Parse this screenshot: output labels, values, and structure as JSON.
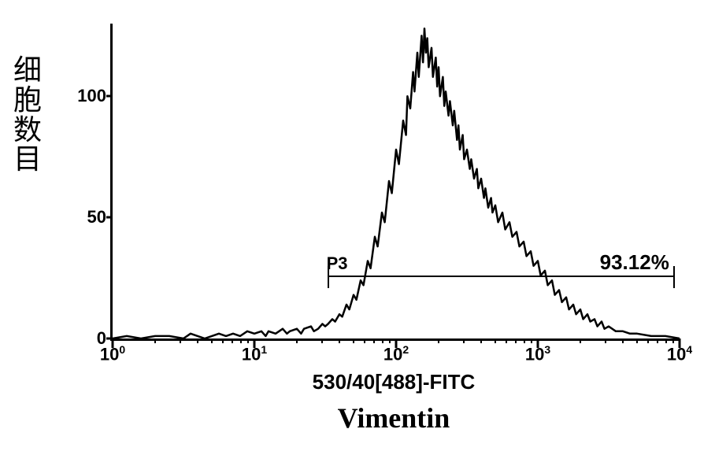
{
  "chart": {
    "type": "flow-cytometry-histogram",
    "background_color": "#ffffff",
    "line_color": "#000000",
    "line_width": 2,
    "ylabel_chars": [
      "细",
      "胞",
      "数",
      "目"
    ],
    "ylabel_fontsize": 36,
    "xlabel": "530/40[488]-FITC",
    "xlabel_fontsize": 26,
    "title_below": "Vimentin",
    "title_fontsize": 36,
    "yticks": [
      {
        "value": 0,
        "label": "0"
      },
      {
        "value": 50,
        "label": "50"
      },
      {
        "value": 100,
        "label": "100"
      }
    ],
    "ylim": [
      0,
      130
    ],
    "xlim_log10": [
      0,
      4
    ],
    "xticks": [
      {
        "log10": 0,
        "base": "10",
        "exp": "0"
      },
      {
        "log10": 1,
        "base": "10",
        "exp": "1"
      },
      {
        "log10": 2,
        "base": "10",
        "exp": "2"
      },
      {
        "log10": 3,
        "base": "10",
        "exp": "3"
      },
      {
        "log10": 4,
        "base": "10",
        "exp": "4"
      }
    ],
    "gate": {
      "label": "P3",
      "percent": "93.12%",
      "start_log10": 1.52,
      "end_log10": 3.96,
      "y_value": 26
    },
    "data_points": [
      {
        "x": 0.0,
        "y": 0
      },
      {
        "x": 0.1,
        "y": 1
      },
      {
        "x": 0.2,
        "y": 0
      },
      {
        "x": 0.3,
        "y": 1
      },
      {
        "x": 0.4,
        "y": 1
      },
      {
        "x": 0.5,
        "y": 0
      },
      {
        "x": 0.55,
        "y": 2
      },
      {
        "x": 0.6,
        "y": 1
      },
      {
        "x": 0.65,
        "y": 0
      },
      {
        "x": 0.7,
        "y": 1
      },
      {
        "x": 0.75,
        "y": 2
      },
      {
        "x": 0.8,
        "y": 1
      },
      {
        "x": 0.85,
        "y": 2
      },
      {
        "x": 0.9,
        "y": 1
      },
      {
        "x": 0.95,
        "y": 3
      },
      {
        "x": 1.0,
        "y": 2
      },
      {
        "x": 1.05,
        "y": 3
      },
      {
        "x": 1.08,
        "y": 1
      },
      {
        "x": 1.1,
        "y": 3
      },
      {
        "x": 1.15,
        "y": 2
      },
      {
        "x": 1.2,
        "y": 4
      },
      {
        "x": 1.23,
        "y": 2
      },
      {
        "x": 1.25,
        "y": 3
      },
      {
        "x": 1.3,
        "y": 4
      },
      {
        "x": 1.33,
        "y": 2
      },
      {
        "x": 1.35,
        "y": 4
      },
      {
        "x": 1.4,
        "y": 5
      },
      {
        "x": 1.42,
        "y": 3
      },
      {
        "x": 1.45,
        "y": 4
      },
      {
        "x": 1.48,
        "y": 6
      },
      {
        "x": 1.5,
        "y": 5
      },
      {
        "x": 1.52,
        "y": 6
      },
      {
        "x": 1.55,
        "y": 8
      },
      {
        "x": 1.57,
        "y": 7
      },
      {
        "x": 1.6,
        "y": 10
      },
      {
        "x": 1.62,
        "y": 9
      },
      {
        "x": 1.65,
        "y": 14
      },
      {
        "x": 1.67,
        "y": 12
      },
      {
        "x": 1.7,
        "y": 18
      },
      {
        "x": 1.72,
        "y": 16
      },
      {
        "x": 1.75,
        "y": 24
      },
      {
        "x": 1.77,
        "y": 22
      },
      {
        "x": 1.8,
        "y": 32
      },
      {
        "x": 1.82,
        "y": 29
      },
      {
        "x": 1.85,
        "y": 42
      },
      {
        "x": 1.87,
        "y": 38
      },
      {
        "x": 1.9,
        "y": 52
      },
      {
        "x": 1.92,
        "y": 48
      },
      {
        "x": 1.95,
        "y": 65
      },
      {
        "x": 1.97,
        "y": 60
      },
      {
        "x": 2.0,
        "y": 78
      },
      {
        "x": 2.02,
        "y": 72
      },
      {
        "x": 2.05,
        "y": 90
      },
      {
        "x": 2.07,
        "y": 84
      },
      {
        "x": 2.08,
        "y": 100
      },
      {
        "x": 2.1,
        "y": 95
      },
      {
        "x": 2.12,
        "y": 110
      },
      {
        "x": 2.13,
        "y": 102
      },
      {
        "x": 2.15,
        "y": 118
      },
      {
        "x": 2.16,
        "y": 108
      },
      {
        "x": 2.18,
        "y": 125
      },
      {
        "x": 2.19,
        "y": 114
      },
      {
        "x": 2.2,
        "y": 128
      },
      {
        "x": 2.21,
        "y": 118
      },
      {
        "x": 2.22,
        "y": 124
      },
      {
        "x": 2.23,
        "y": 112
      },
      {
        "x": 2.25,
        "y": 120
      },
      {
        "x": 2.26,
        "y": 108
      },
      {
        "x": 2.28,
        "y": 116
      },
      {
        "x": 2.29,
        "y": 104
      },
      {
        "x": 2.3,
        "y": 112
      },
      {
        "x": 2.31,
        "y": 100
      },
      {
        "x": 2.33,
        "y": 108
      },
      {
        "x": 2.34,
        "y": 96
      },
      {
        "x": 2.35,
        "y": 102
      },
      {
        "x": 2.37,
        "y": 92
      },
      {
        "x": 2.38,
        "y": 98
      },
      {
        "x": 2.4,
        "y": 88
      },
      {
        "x": 2.41,
        "y": 94
      },
      {
        "x": 2.43,
        "y": 82
      },
      {
        "x": 2.44,
        "y": 88
      },
      {
        "x": 2.45,
        "y": 78
      },
      {
        "x": 2.47,
        "y": 84
      },
      {
        "x": 2.48,
        "y": 74
      },
      {
        "x": 2.5,
        "y": 78
      },
      {
        "x": 2.52,
        "y": 70
      },
      {
        "x": 2.53,
        "y": 74
      },
      {
        "x": 2.55,
        "y": 66
      },
      {
        "x": 2.57,
        "y": 70
      },
      {
        "x": 2.58,
        "y": 62
      },
      {
        "x": 2.6,
        "y": 66
      },
      {
        "x": 2.62,
        "y": 58
      },
      {
        "x": 2.63,
        "y": 62
      },
      {
        "x": 2.65,
        "y": 54
      },
      {
        "x": 2.67,
        "y": 58
      },
      {
        "x": 2.68,
        "y": 52
      },
      {
        "x": 2.7,
        "y": 55
      },
      {
        "x": 2.72,
        "y": 48
      },
      {
        "x": 2.75,
        "y": 52
      },
      {
        "x": 2.77,
        "y": 45
      },
      {
        "x": 2.8,
        "y": 48
      },
      {
        "x": 2.82,
        "y": 42
      },
      {
        "x": 2.85,
        "y": 44
      },
      {
        "x": 2.87,
        "y": 38
      },
      {
        "x": 2.9,
        "y": 40
      },
      {
        "x": 2.92,
        "y": 34
      },
      {
        "x": 2.95,
        "y": 36
      },
      {
        "x": 2.97,
        "y": 30
      },
      {
        "x": 3.0,
        "y": 32
      },
      {
        "x": 3.02,
        "y": 26
      },
      {
        "x": 3.05,
        "y": 28
      },
      {
        "x": 3.07,
        "y": 22
      },
      {
        "x": 3.1,
        "y": 24
      },
      {
        "x": 3.12,
        "y": 18
      },
      {
        "x": 3.15,
        "y": 20
      },
      {
        "x": 3.17,
        "y": 15
      },
      {
        "x": 3.2,
        "y": 17
      },
      {
        "x": 3.22,
        "y": 12
      },
      {
        "x": 3.25,
        "y": 14
      },
      {
        "x": 3.27,
        "y": 10
      },
      {
        "x": 3.3,
        "y": 12
      },
      {
        "x": 3.32,
        "y": 8
      },
      {
        "x": 3.35,
        "y": 10
      },
      {
        "x": 3.37,
        "y": 7
      },
      {
        "x": 3.4,
        "y": 8
      },
      {
        "x": 3.42,
        "y": 5
      },
      {
        "x": 3.45,
        "y": 7
      },
      {
        "x": 3.47,
        "y": 4
      },
      {
        "x": 3.5,
        "y": 5
      },
      {
        "x": 3.55,
        "y": 3
      },
      {
        "x": 3.6,
        "y": 3
      },
      {
        "x": 3.65,
        "y": 2
      },
      {
        "x": 3.7,
        "y": 2
      },
      {
        "x": 3.8,
        "y": 1
      },
      {
        "x": 3.9,
        "y": 1
      },
      {
        "x": 4.0,
        "y": 0
      }
    ]
  }
}
